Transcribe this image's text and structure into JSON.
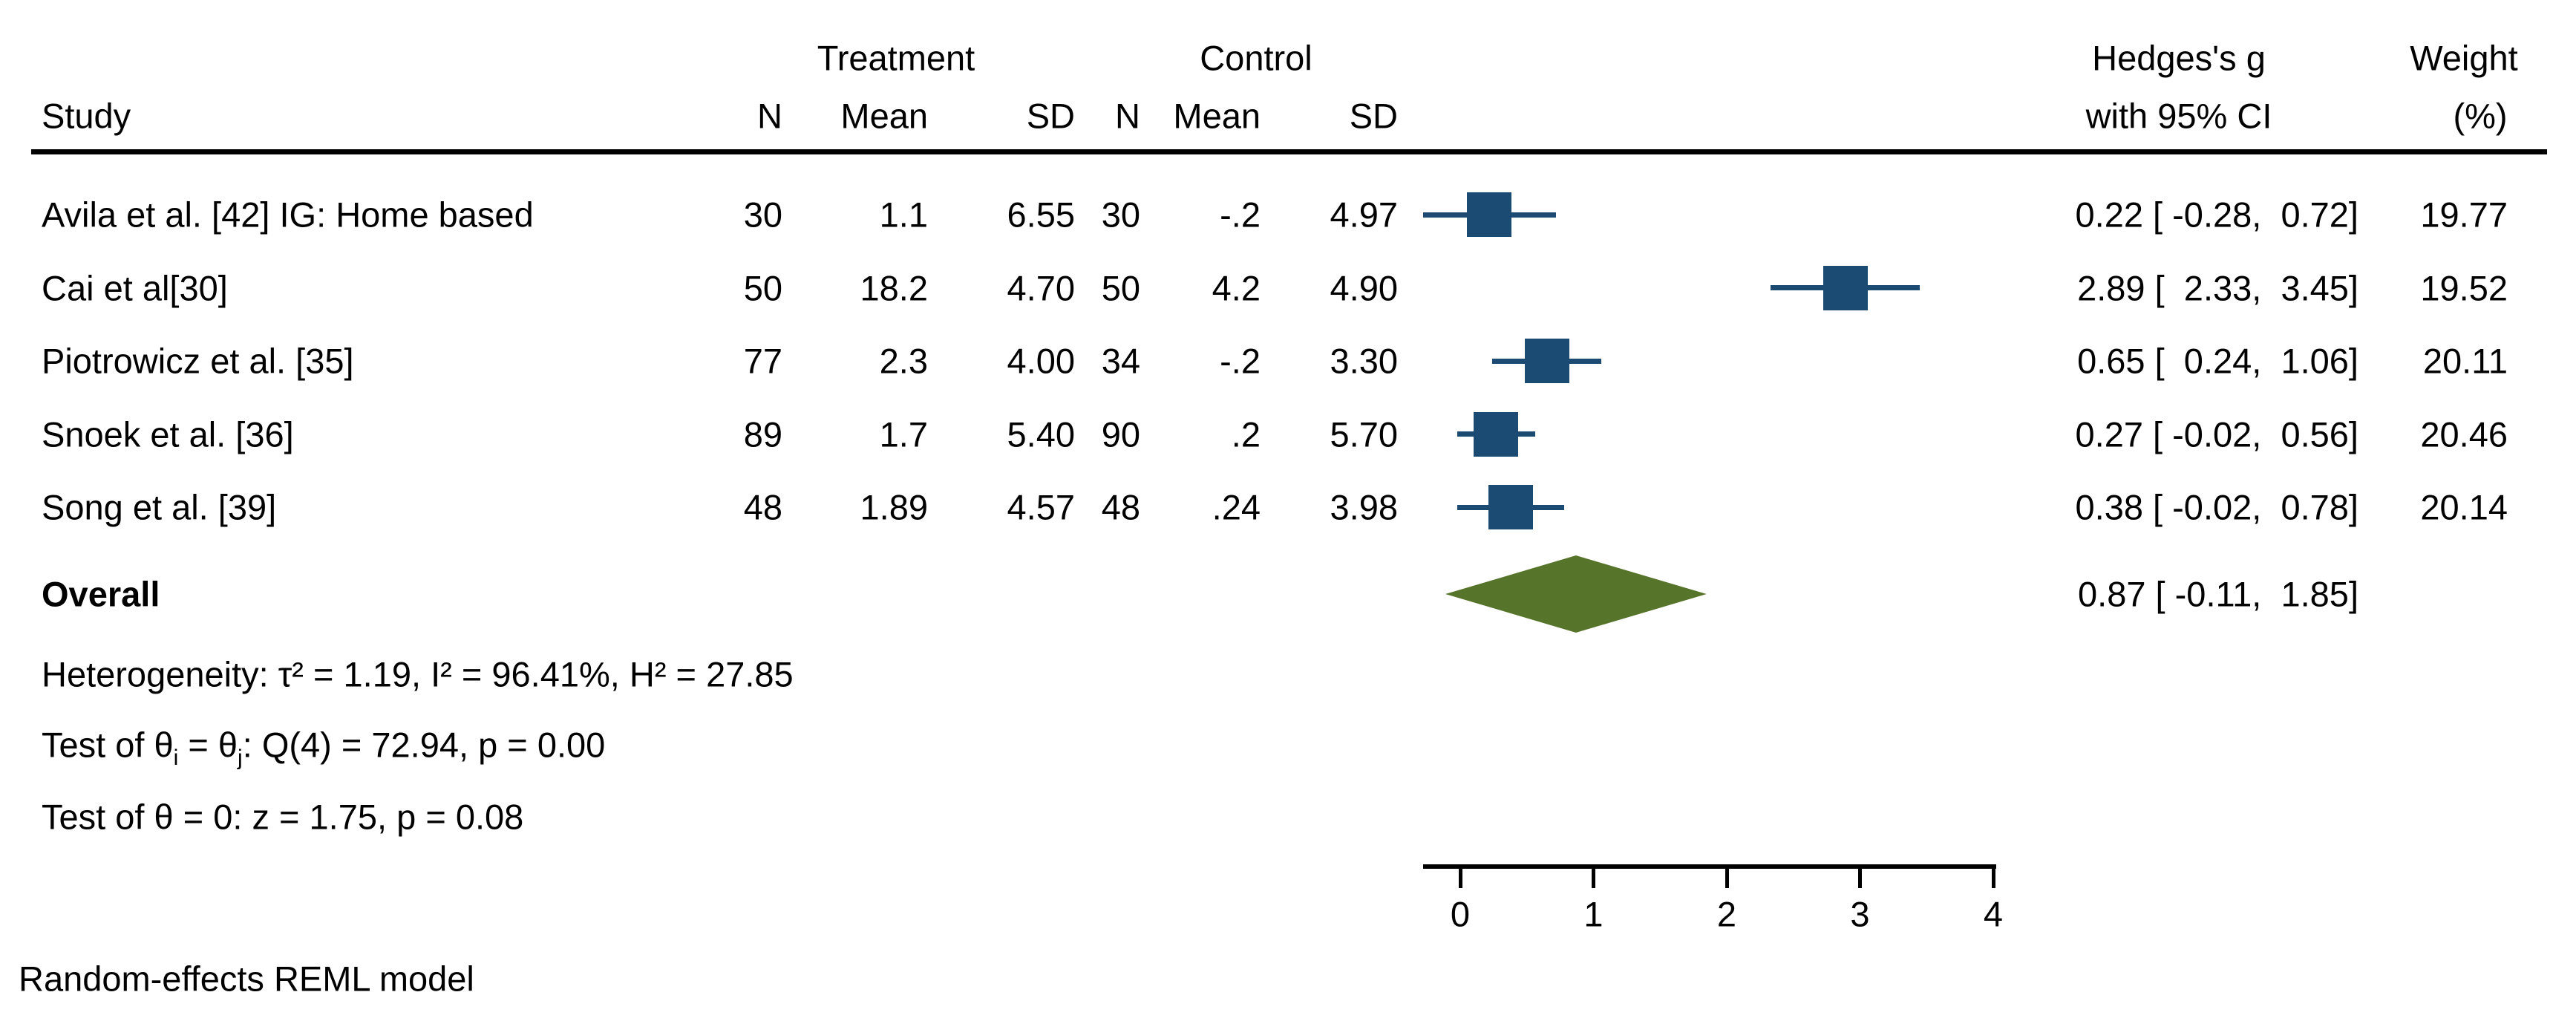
{
  "header": {
    "study": "Study",
    "treatment": "Treatment",
    "control": "Control",
    "n": "N",
    "mean": "Mean",
    "sd": "SD",
    "effect_line1": "Hedges's g",
    "effect_line2": "with 95% CI",
    "weight_line1": "Weight",
    "weight_line2": "(%)"
  },
  "rows": [
    {
      "study": "Avila et al. [42] IG: Home based",
      "t_n": "30",
      "t_mean": "1.1",
      "t_sd": "6.55",
      "c_n": "30",
      "c_mean": "-.2",
      "c_sd": "4.97",
      "ci": "0.22 [ -0.28,  0.72]",
      "weight": "19.77"
    },
    {
      "study": "Cai et al[30]",
      "t_n": "50",
      "t_mean": "18.2",
      "t_sd": "4.70",
      "c_n": "50",
      "c_mean": "4.2",
      "c_sd": "4.90",
      "ci": "2.89 [  2.33,  3.45]",
      "weight": "19.52"
    },
    {
      "study": "Piotrowicz et al. [35]",
      "t_n": "77",
      "t_mean": "2.3",
      "t_sd": "4.00",
      "c_n": "34",
      "c_mean": "-.2",
      "c_sd": "3.30",
      "ci": "0.65 [  0.24,  1.06]",
      "weight": "20.11"
    },
    {
      "study": "Snoek et al. [36]",
      "t_n": "89",
      "t_mean": "1.7",
      "t_sd": "5.40",
      "c_n": "90",
      "c_mean": ".2",
      "c_sd": "5.70",
      "ci": "0.27 [ -0.02,  0.56]",
      "weight": "20.46"
    },
    {
      "study": "Song et al. [39]",
      "t_n": "48",
      "t_mean": "1.89",
      "t_sd": "4.57",
      "c_n": "48",
      "c_mean": ".24",
      "c_sd": "3.98",
      "ci": "0.38 [ -0.02,  0.78]",
      "weight": "20.14"
    }
  ],
  "overall": {
    "label": "Overall",
    "ci": "0.87 [ -0.11,  1.85]"
  },
  "stats": {
    "heterogeneity": "Heterogeneity: τ² = 1.19, I² = 96.41%, H² = 27.85",
    "test_q": {
      "p1": "Test of θ",
      "sub1": "i",
      "p2": " = θ",
      "sub2": "j",
      "p3": ": Q(4) = 72.94, p = 0.00"
    },
    "test_z": "Test of θ = 0: z = 1.75, p = 0.08"
  },
  "note": "Random-effects REML model",
  "chart_data": {
    "type": "forest",
    "effect_measure": "Hedges's g with 95% CI",
    "model": "Random-effects REML model",
    "axis_ticks": [
      "0",
      "1",
      "2",
      "3",
      "4"
    ],
    "axis_tick_values": [
      0,
      1,
      2,
      3,
      4
    ],
    "axis_displayed_range": [
      -0.28,
      4.02
    ],
    "marker_color": "#1B4A72",
    "diamond_color": "#57742B",
    "studies": [
      {
        "name": "Avila et al. [42] IG: Home based",
        "treatment": {
          "n": 30,
          "mean": 1.1,
          "sd": 6.55
        },
        "control": {
          "n": 30,
          "mean": -0.2,
          "sd": 4.97
        },
        "effect": 0.22,
        "ci": [
          -0.28,
          0.72
        ],
        "weight_pct": 19.77
      },
      {
        "name": "Cai et al[30]",
        "treatment": {
          "n": 50,
          "mean": 18.2,
          "sd": 4.7
        },
        "control": {
          "n": 50,
          "mean": 4.2,
          "sd": 4.9
        },
        "effect": 2.89,
        "ci": [
          2.33,
          3.45
        ],
        "weight_pct": 19.52
      },
      {
        "name": "Piotrowicz et al. [35]",
        "treatment": {
          "n": 77,
          "mean": 2.3,
          "sd": 4.0
        },
        "control": {
          "n": 34,
          "mean": -0.2,
          "sd": 3.3
        },
        "effect": 0.65,
        "ci": [
          0.24,
          1.06
        ],
        "weight_pct": 20.11
      },
      {
        "name": "Snoek et al. [36]",
        "treatment": {
          "n": 89,
          "mean": 1.7,
          "sd": 5.4
        },
        "control": {
          "n": 90,
          "mean": 0.2,
          "sd": 5.7
        },
        "effect": 0.27,
        "ci": [
          -0.02,
          0.56
        ],
        "weight_pct": 20.46
      },
      {
        "name": "Song et al. [39]",
        "treatment": {
          "n": 48,
          "mean": 1.89,
          "sd": 4.57
        },
        "control": {
          "n": 48,
          "mean": 0.24,
          "sd": 3.98
        },
        "effect": 0.38,
        "ci": [
          -0.02,
          0.78
        ],
        "weight_pct": 20.14
      }
    ],
    "overall": {
      "effect": 0.87,
      "ci": [
        -0.11,
        1.85
      ]
    },
    "heterogeneity": {
      "tau2": 1.19,
      "I2_pct": 96.41,
      "H2": 27.85
    },
    "test_homogeneity": {
      "Q": 72.94,
      "df": 4,
      "p": 0.0
    },
    "test_overall_effect": {
      "z": 1.75,
      "p": 0.08
    }
  }
}
